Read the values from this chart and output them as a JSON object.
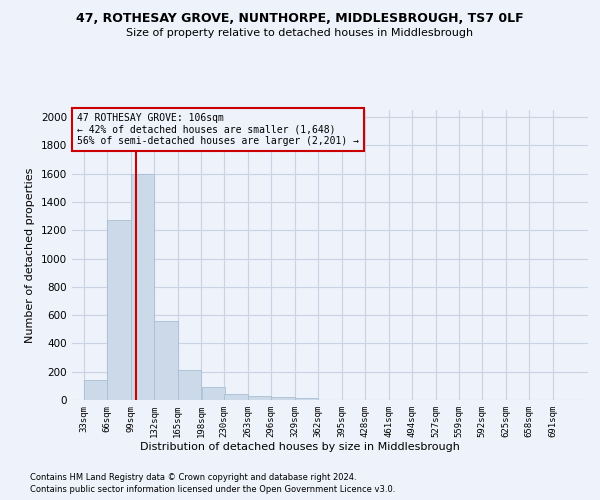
{
  "title1": "47, ROTHESAY GROVE, NUNTHORPE, MIDDLESBROUGH, TS7 0LF",
  "title2": "Size of property relative to detached houses in Middlesbrough",
  "xlabel": "Distribution of detached houses by size in Middlesbrough",
  "ylabel": "Number of detached properties",
  "footnote1": "Contains HM Land Registry data © Crown copyright and database right 2024.",
  "footnote2": "Contains public sector information licensed under the Open Government Licence v3.0.",
  "bar_color": "#ccd9e8",
  "bar_edge_color": "#a8bfd4",
  "grid_color": "#c8d4e4",
  "annotation_box_color": "#cc0000",
  "vline_color": "#cc0000",
  "bins": [
    33,
    66,
    99,
    132,
    165,
    198,
    230,
    263,
    296,
    329,
    362,
    395,
    428,
    461,
    494,
    527,
    559,
    592,
    625,
    658,
    691
  ],
  "values": [
    140,
    1270,
    1600,
    560,
    215,
    90,
    45,
    28,
    18,
    15,
    0,
    0,
    0,
    0,
    0,
    0,
    0,
    0,
    0,
    0
  ],
  "property_size": 106,
  "annotation_line1": "47 ROTHESAY GROVE: 106sqm",
  "annotation_line2": "← 42% of detached houses are smaller (1,648)",
  "annotation_line3": "56% of semi-detached houses are larger (2,201) →",
  "ylim": [
    0,
    2050
  ],
  "yticks": [
    0,
    200,
    400,
    600,
    800,
    1000,
    1200,
    1400,
    1600,
    1800,
    2000
  ],
  "background_color": "#eef2fa"
}
